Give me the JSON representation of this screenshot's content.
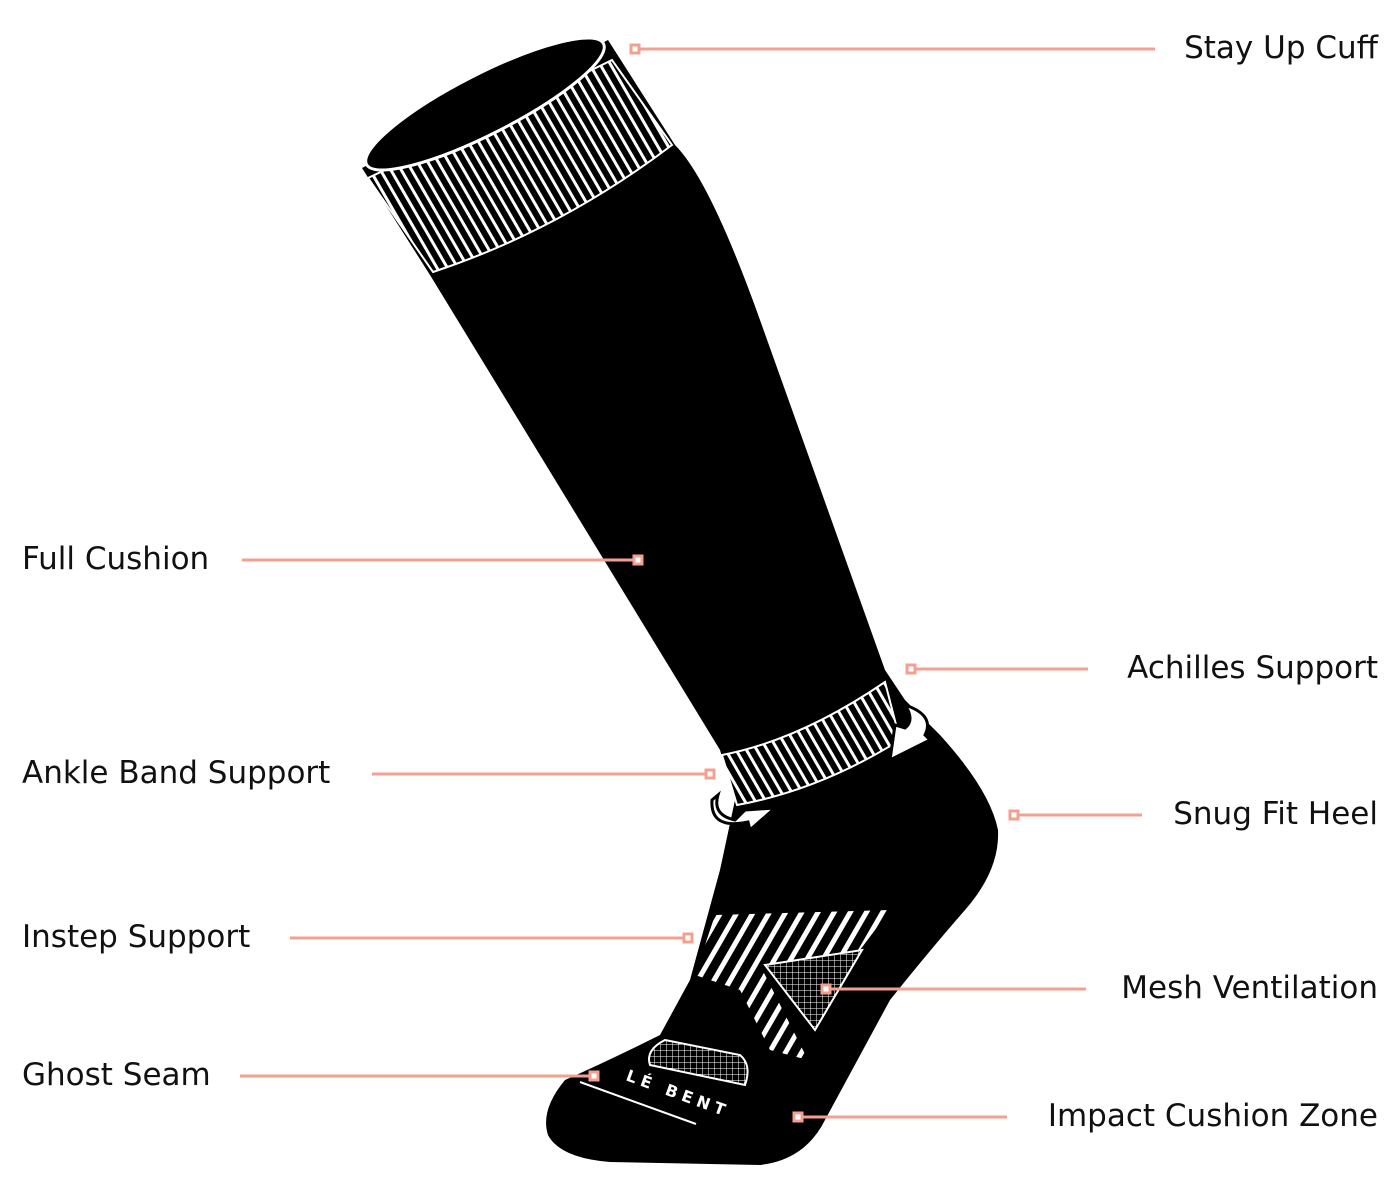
{
  "callout_color": "#f4a090",
  "logo_text": "LÉ BENT",
  "labels": {
    "stay_up_cuff": "Stay Up Cuff",
    "full_cushion": "Full Cushion",
    "achilles_support": "Achilles Support",
    "ankle_band_support": "Ankle Band Support",
    "snug_fit_heel": "Snug Fit Heel",
    "instep_support": "Instep Support",
    "mesh_ventilation": "Mesh Ventilation",
    "ghost_seam": "Ghost Seam",
    "impact_cushion_zone": "Impact Cushion Zone"
  }
}
